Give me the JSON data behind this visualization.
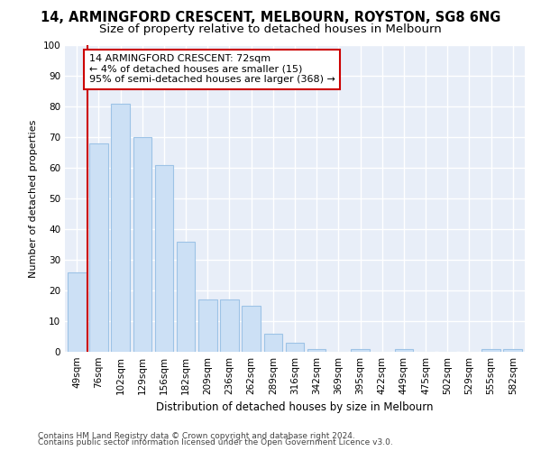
{
  "title": "14, ARMINGFORD CRESCENT, MELBOURN, ROYSTON, SG8 6NG",
  "subtitle": "Size of property relative to detached houses in Melbourn",
  "xlabel": "Distribution of detached houses by size in Melbourn",
  "ylabel": "Number of detached properties",
  "categories": [
    "49sqm",
    "76sqm",
    "102sqm",
    "129sqm",
    "156sqm",
    "182sqm",
    "209sqm",
    "236sqm",
    "262sqm",
    "289sqm",
    "316sqm",
    "342sqm",
    "369sqm",
    "395sqm",
    "422sqm",
    "449sqm",
    "475sqm",
    "502sqm",
    "529sqm",
    "555sqm",
    "582sqm"
  ],
  "values": [
    26,
    68,
    81,
    70,
    61,
    36,
    17,
    17,
    15,
    6,
    3,
    1,
    0,
    1,
    0,
    1,
    0,
    0,
    0,
    1,
    1
  ],
  "bar_color": "#cce0f5",
  "bar_edge_color": "#9dc3e6",
  "annotation_title": "14 ARMINGFORD CRESCENT: 72sqm",
  "annotation_line1": "← 4% of detached houses are smaller (15)",
  "annotation_line2": "95% of semi-detached houses are larger (368) →",
  "annotation_box_color": "#ffffff",
  "annotation_border_color": "#cc0000",
  "red_line_color": "#cc0000",
  "ylim": [
    0,
    100
  ],
  "yticks": [
    0,
    10,
    20,
    30,
    40,
    50,
    60,
    70,
    80,
    90,
    100
  ],
  "footer1": "Contains HM Land Registry data © Crown copyright and database right 2024.",
  "footer2": "Contains public sector information licensed under the Open Government Licence v3.0.",
  "bg_color": "#ffffff",
  "plot_bg_color": "#e8eef8",
  "grid_color": "#ffffff",
  "title_fontsize": 10.5,
  "subtitle_fontsize": 9.5,
  "axis_fontsize": 8,
  "tick_fontsize": 7.5,
  "footer_fontsize": 6.5,
  "annotation_fontsize": 8
}
